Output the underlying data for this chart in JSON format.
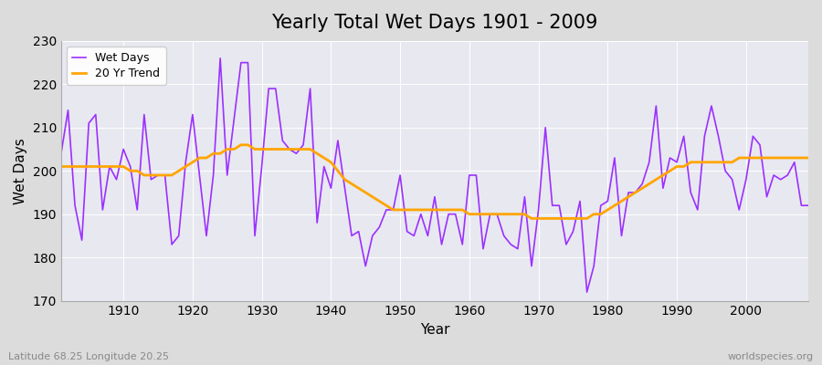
{
  "title": "Yearly Total Wet Days 1901 - 2009",
  "xlabel": "Year",
  "ylabel": "Wet Days",
  "xlim": [
    1901,
    2009
  ],
  "ylim": [
    170,
    230
  ],
  "yticks": [
    170,
    180,
    190,
    200,
    210,
    220,
    230
  ],
  "xticks": [
    1910,
    1920,
    1930,
    1940,
    1950,
    1960,
    1970,
    1980,
    1990,
    2000
  ],
  "line_color": "#9B30FF",
  "trend_color": "#FFA500",
  "bg_color": "#DCDCDC",
  "plot_bg_color": "#E8E8F0",
  "subtitle_left": "Latitude 68.25 Longitude 20.25",
  "subtitle_right": "worldspecies.org",
  "legend_wet": "Wet Days",
  "legend_trend": "20 Yr Trend",
  "wet_days": [
    204,
    214,
    192,
    184,
    211,
    213,
    191,
    201,
    198,
    205,
    201,
    191,
    213,
    198,
    199,
    199,
    183,
    185,
    202,
    213,
    199,
    185,
    199,
    226,
    199,
    212,
    225,
    225,
    185,
    201,
    219,
    219,
    207,
    205,
    204,
    206,
    219,
    188,
    201,
    196,
    207,
    196,
    185,
    186,
    178,
    185,
    187,
    191,
    191,
    199,
    186,
    185,
    190,
    185,
    194,
    183,
    190,
    190,
    183,
    199,
    199,
    182,
    190,
    190,
    185,
    183,
    182,
    194,
    178,
    191,
    210,
    192,
    192,
    183,
    186,
    193,
    172,
    178,
    192,
    193,
    203,
    185,
    195,
    195,
    197,
    202,
    215,
    196,
    203,
    202,
    208,
    195,
    191,
    208,
    215,
    208,
    200,
    198,
    191,
    198,
    208,
    206,
    194,
    199,
    198,
    199,
    202,
    192,
    192
  ],
  "trend": [
    201,
    201,
    201,
    201,
    201,
    201,
    201,
    201,
    201,
    201,
    200,
    200,
    199,
    199,
    199,
    199,
    199,
    200,
    201,
    202,
    203,
    203,
    204,
    204,
    205,
    205,
    206,
    206,
    205,
    205,
    205,
    205,
    205,
    205,
    205,
    205,
    205,
    204,
    203,
    202,
    200,
    198,
    197,
    196,
    195,
    194,
    193,
    192,
    191,
    191,
    191,
    191,
    191,
    191,
    191,
    191,
    191,
    191,
    191,
    190,
    190,
    190,
    190,
    190,
    190,
    190,
    190,
    190,
    189,
    189,
    189,
    189,
    189,
    189,
    189,
    189,
    189,
    190,
    190,
    191,
    192,
    193,
    194,
    195,
    196,
    197,
    198,
    199,
    200,
    201,
    201,
    202,
    202,
    202,
    202,
    202,
    202,
    202,
    203,
    203,
    203,
    203,
    203,
    203,
    203,
    203,
    203,
    203,
    203
  ]
}
